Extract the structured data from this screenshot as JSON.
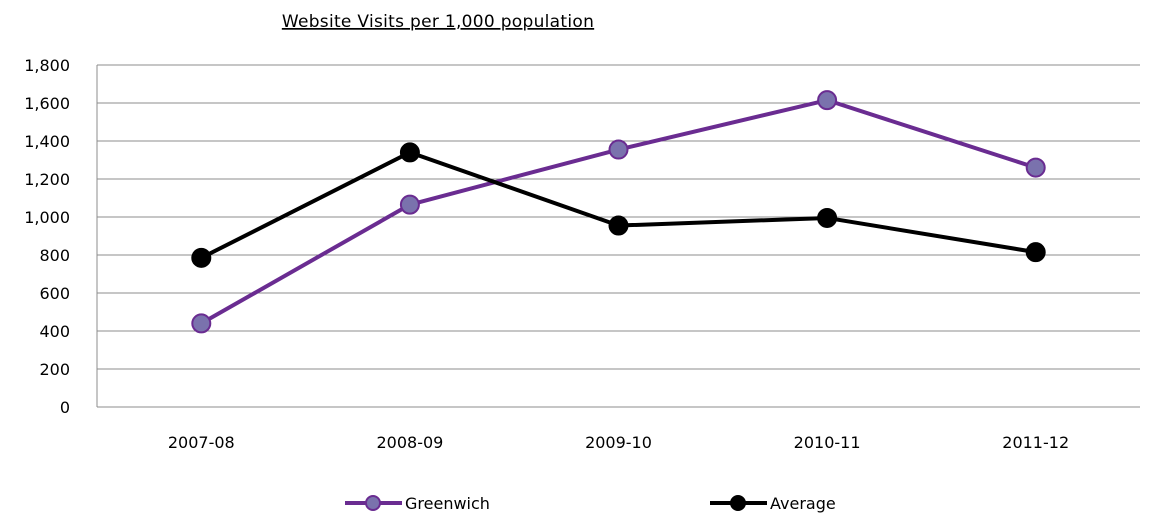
{
  "chart_data": {
    "type": "line",
    "title": "Website Visits per 1,000 population",
    "xlabel": "",
    "ylabel": "",
    "categories": [
      "2007-08",
      "2008-09",
      "2009-10",
      "2010-11",
      "2011-12"
    ],
    "ylim": [
      0,
      1800
    ],
    "yticks": [
      0,
      200,
      400,
      600,
      800,
      1000,
      1200,
      1400,
      1600,
      1800
    ],
    "ytick_labels": [
      "0",
      "200",
      "400",
      "600",
      "800",
      "1,000",
      "1,200",
      "1,400",
      "1,600",
      "1,800"
    ],
    "grid": true,
    "legend_position": "bottom",
    "series": [
      {
        "name": "Greenwich",
        "values": [
          440,
          1065,
          1355,
          1615,
          1260
        ],
        "line_color": "#6a2c91",
        "marker_fill": "#7a72ad",
        "marker_stroke": "#6a2c91"
      },
      {
        "name": "Average",
        "values": [
          785,
          1340,
          955,
          995,
          815
        ],
        "line_color": "#000000",
        "marker_fill": "#000000",
        "marker_stroke": "#000000"
      }
    ]
  }
}
